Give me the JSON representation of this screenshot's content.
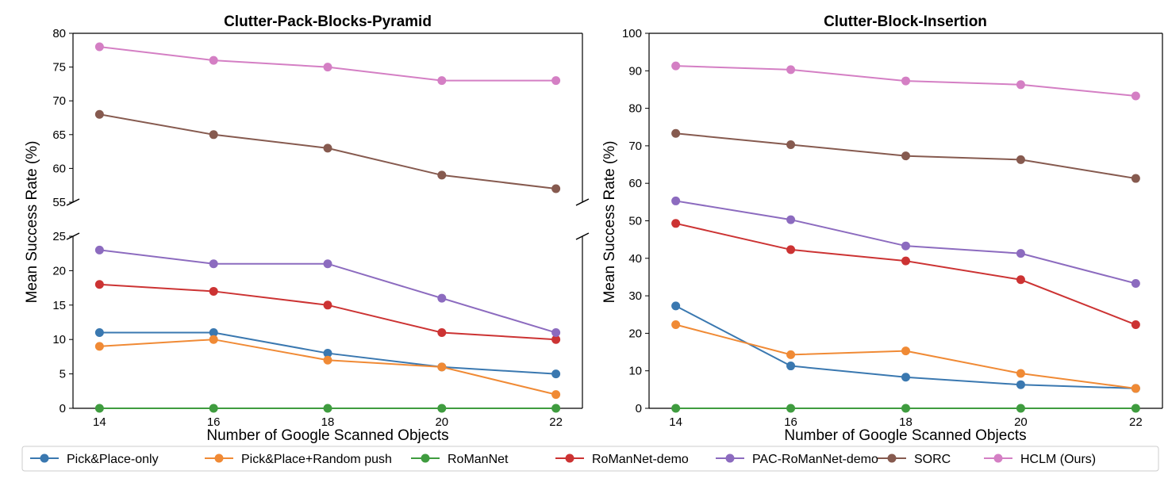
{
  "chart_data": [
    {
      "type": "line",
      "title": "Clutter-Pack-Blocks-Pyramid",
      "xlabel": "Number of Google Scanned Objects",
      "ylabel": "Mean Success Rate (%)",
      "x": [
        14,
        16,
        18,
        20,
        22
      ],
      "broken_y_axis": true,
      "ylim_upper": [
        55,
        80
      ],
      "ylim_lower": [
        0,
        25
      ],
      "yticks_upper": [
        55,
        60,
        65,
        70,
        75,
        80
      ],
      "yticks_lower": [
        0,
        5,
        10,
        15,
        20,
        25
      ],
      "grid": false,
      "series": [
        {
          "name": "Pick&Place-only",
          "values": [
            11,
            11,
            8,
            6,
            5
          ]
        },
        {
          "name": "Pick&Place+Random push",
          "values": [
            9,
            10,
            7,
            6,
            2
          ]
        },
        {
          "name": "RoManNet",
          "values": [
            0,
            0,
            0,
            0,
            0
          ]
        },
        {
          "name": "RoManNet-demo",
          "values": [
            18,
            17,
            15,
            11,
            10
          ]
        },
        {
          "name": "PAC-RoManNet-demo",
          "values": [
            23,
            21,
            21,
            16,
            11
          ]
        },
        {
          "name": "SORC",
          "values": [
            68,
            65,
            63,
            59,
            57
          ]
        },
        {
          "name": "HCLM (Ours)",
          "values": [
            78,
            76,
            75,
            73,
            73
          ]
        }
      ]
    },
    {
      "type": "line",
      "title": "Clutter-Block-Insertion",
      "xlabel": "Number of Google Scanned Objects",
      "ylabel": "Mean Success Rate (%)",
      "x": [
        14,
        16,
        18,
        20,
        22
      ],
      "ylim": [
        0,
        100
      ],
      "yticks": [
        0,
        10,
        20,
        30,
        40,
        50,
        60,
        70,
        80,
        90,
        100
      ],
      "grid": false,
      "series": [
        {
          "name": "Pick&Place-only",
          "values": [
            27.3,
            11.3,
            8.3,
            6.3,
            5.3
          ]
        },
        {
          "name": "Pick&Place+Random push",
          "values": [
            22.3,
            14.3,
            15.3,
            9.3,
            5.3
          ]
        },
        {
          "name": "RoManNet",
          "values": [
            0,
            0,
            0,
            0,
            0
          ]
        },
        {
          "name": "RoManNet-demo",
          "values": [
            49.3,
            42.3,
            39.3,
            34.3,
            22.3
          ]
        },
        {
          "name": "PAC-RoManNet-demo",
          "values": [
            55.3,
            50.3,
            43.3,
            41.3,
            33.3
          ]
        },
        {
          "name": "SORC",
          "values": [
            73.3,
            70.3,
            67.3,
            66.3,
            61.3
          ]
        },
        {
          "name": "HCLM (Ours)",
          "values": [
            91.3,
            90.3,
            87.3,
            86.3,
            83.3
          ]
        }
      ]
    }
  ],
  "colors": [
    "#3a78b0",
    "#f08a35",
    "#3f9c3f",
    "#cc3333",
    "#8c6bbf",
    "#865a4f",
    "#d47fc4"
  ],
  "legend": {
    "placement": "bottom",
    "entries": [
      "Pick&Place-only",
      "Pick&Place+Random push",
      "RoManNet",
      "RoManNet-demo",
      "PAC-RoManNet-demo",
      "SORC",
      "HCLM (Ours)"
    ]
  }
}
